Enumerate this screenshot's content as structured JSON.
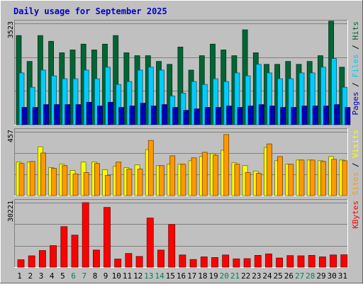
{
  "chart_data": {
    "type": "bar",
    "title": "Daily usage for September 2025",
    "categories": [
      "1",
      "2",
      "3",
      "4",
      "5",
      "6",
      "7",
      "8",
      "9",
      "10",
      "11",
      "12",
      "13",
      "14",
      "15",
      "16",
      "17",
      "18",
      "19",
      "20",
      "21",
      "22",
      "23",
      "24",
      "25",
      "26",
      "27",
      "28",
      "29",
      "30",
      "31"
    ],
    "weekend_days": [
      "6",
      "7",
      "13",
      "14",
      "20",
      "21",
      "27",
      "28"
    ],
    "panels": [
      {
        "id": "hits",
        "max_label": "3523",
        "ylim": [
          0,
          3523
        ],
        "legend": [
          "Pages",
          "Files",
          "Hits"
        ],
        "series": [
          {
            "name": "Hits",
            "color": "#006633",
            "values": [
              3100,
              2200,
              3100,
              2900,
              2500,
              2600,
              2800,
              2600,
              2800,
              3100,
              2500,
              2400,
              2400,
              2200,
              2100,
              2700,
              1900,
              2400,
              2800,
              2600,
              2400,
              3300,
              2500,
              2100,
              2100,
              2200,
              2100,
              2200,
              2400,
              3600,
              2000
            ]
          },
          {
            "name": "Files",
            "color": "#00ccff",
            "values": [
              1800,
              1300,
              1900,
              1700,
              1600,
              1600,
              1900,
              1600,
              2000,
              1400,
              1500,
              1900,
              2000,
              1900,
              1000,
              1100,
              1500,
              1400,
              1600,
              1500,
              1800,
              1700,
              2100,
              1800,
              1600,
              1600,
              1800,
              1800,
              2000,
              2300,
              1300
            ]
          },
          {
            "name": "Pages",
            "color": "#0000bb",
            "values": [
              600,
              600,
              700,
              700,
              700,
              700,
              780,
              650,
              780,
              600,
              650,
              750,
              650,
              700,
              600,
              500,
              550,
              600,
              600,
              650,
              600,
              650,
              700,
              650,
              600,
              600,
              650,
              650,
              650,
              700,
              600
            ]
          }
        ]
      },
      {
        "id": "visits",
        "max_label": "457",
        "ylim": [
          0,
          457
        ],
        "legend": [
          "Sites",
          "Visits"
        ],
        "series": [
          {
            "name": "Visits",
            "color": "#ffff00",
            "values": [
              240,
              240,
              350,
              200,
              225,
              180,
              240,
              240,
              185,
              210,
              200,
              220,
              330,
              215,
              225,
              225,
              250,
              280,
              300,
              325,
              235,
              215,
              175,
              345,
              250,
              225,
              255,
              255,
              250,
              280,
              255
            ]
          },
          {
            "name": "Sites",
            "color": "#ff9900",
            "values": [
              230,
              245,
              305,
              195,
              215,
              155,
              165,
              230,
              145,
              240,
              190,
              190,
              395,
              215,
              285,
              225,
              270,
              310,
              290,
              437,
              225,
              165,
              160,
              370,
              280,
              225,
              255,
              255,
              245,
              260,
              250
            ]
          }
        ]
      },
      {
        "id": "kbytes",
        "max_label": "30221",
        "ylim": [
          0,
          30221
        ],
        "legend": [
          "KBytes"
        ],
        "series": [
          {
            "name": "KBytes",
            "color": "#ff0000",
            "values": [
              3500,
              5300,
              7800,
              10100,
              19000,
              15000,
              30221,
              8000,
              28000,
              3800,
              6400,
              5000,
              23000,
              8000,
              20000,
              5700,
              3600,
              4800,
              4500,
              5700,
              3900,
              4000,
              5500,
              6200,
              4300,
              5400,
              5300,
              5500,
              4800,
              5700,
              5800
            ]
          }
        ]
      }
    ]
  }
}
